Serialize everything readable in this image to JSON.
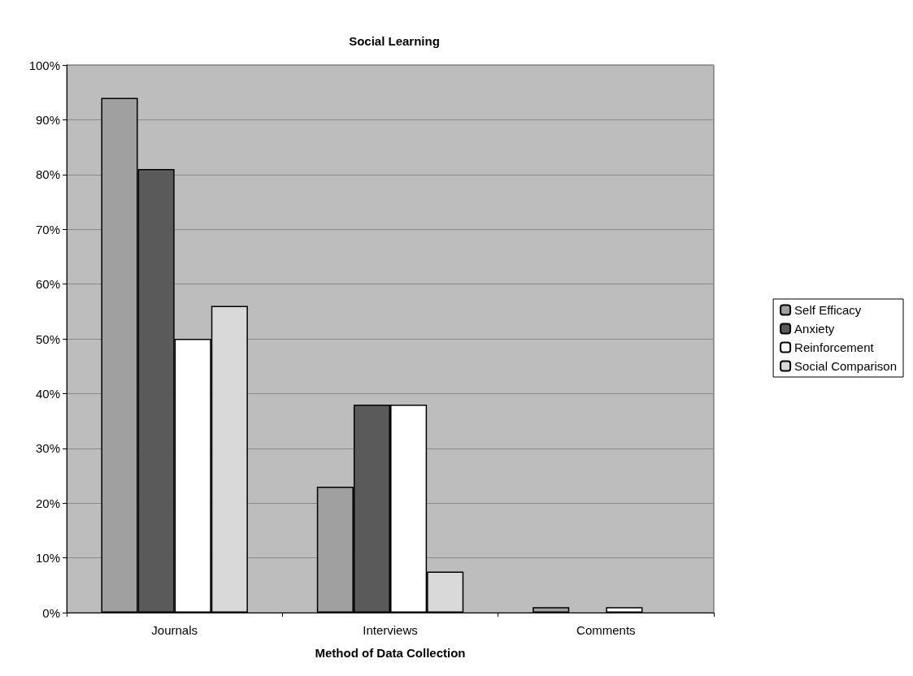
{
  "chart_data": {
    "type": "bar",
    "title": "Social Learning",
    "xlabel": "Method of Data Collection",
    "categories": [
      "Journals",
      "Interviews",
      "Comments"
    ],
    "series": [
      {
        "name": "Self Efficacy",
        "color": "#a0a0a0",
        "values": [
          94,
          23,
          1
        ]
      },
      {
        "name": "Anxiety",
        "color": "#5a5a5a",
        "values": [
          81,
          38,
          null
        ]
      },
      {
        "name": "Reinforcement",
        "color": "#ffffff",
        "values": [
          50,
          38,
          1
        ]
      },
      {
        "name": "Social Comparison",
        "color": "#d9d9d9",
        "values": [
          56,
          7.5,
          null
        ]
      }
    ],
    "ylim": [
      0,
      100
    ],
    "yticks": [
      {
        "value": 0,
        "label": "0%"
      },
      {
        "value": 10,
        "label": "10%"
      },
      {
        "value": 20,
        "label": "20%"
      },
      {
        "value": 30,
        "label": "30%"
      },
      {
        "value": 40,
        "label": "40%"
      },
      {
        "value": 50,
        "label": "50%"
      },
      {
        "value": 60,
        "label": "60%"
      },
      {
        "value": 70,
        "label": "70%"
      },
      {
        "value": 80,
        "label": "80%"
      },
      {
        "value": 90,
        "label": "90%"
      },
      {
        "value": 100,
        "label": "100%"
      }
    ],
    "grid": "y",
    "legend": "right"
  }
}
